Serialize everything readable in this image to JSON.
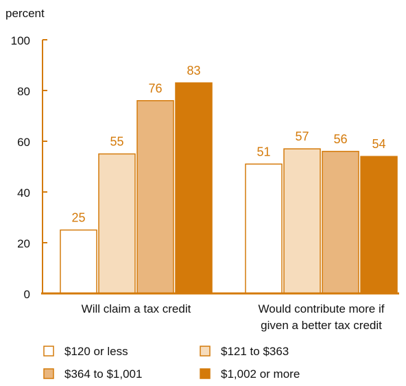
{
  "chart_data": {
    "type": "bar",
    "ylabel": "percent",
    "xlabel": "",
    "ylim": [
      0,
      100
    ],
    "yticks": [
      0,
      20,
      40,
      60,
      80,
      100
    ],
    "grid": false,
    "legend_placement": "bottom",
    "categories": [
      [
        "Will claim a tax credit"
      ],
      [
        "Would contribute more if",
        "given a better tax credit"
      ]
    ],
    "series": [
      {
        "name": "$120 or less",
        "values": [
          25,
          51
        ],
        "fill": "#ffffff"
      },
      {
        "name": "$121 to $363",
        "values": [
          55,
          57
        ],
        "fill": "#f6dcbc"
      },
      {
        "name": "$364 to $1,001",
        "values": [
          76,
          56
        ],
        "fill": "#e9b67e"
      },
      {
        "name": "$1,002 or more",
        "values": [
          83,
          54
        ],
        "fill": "#d47a0a"
      }
    ],
    "colors": {
      "accent": "#d47a0a",
      "label": "#d47a0a",
      "text": "#111111"
    }
  }
}
